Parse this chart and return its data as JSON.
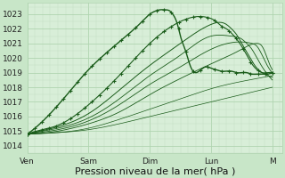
{
  "background_color": "#c8e6c8",
  "plot_bg_color": "#d8eed8",
  "grid_major_color": "#b0d4b0",
  "grid_minor_color": "#c0dcc0",
  "line_color": "#1a5c1a",
  "xlabel": "Pression niveau de la mer( hPa )",
  "xlabel_fontsize": 8,
  "tick_fontsize": 6.5,
  "ylim": [
    1013.5,
    1023.8
  ],
  "yticks": [
    1014,
    1015,
    1016,
    1017,
    1018,
    1019,
    1020,
    1021,
    1022,
    1023
  ],
  "x_day_labels": [
    "Ven",
    "Sam",
    "Dim",
    "Lun",
    "M"
  ],
  "x_day_positions": [
    0,
    48,
    96,
    144,
    192
  ],
  "total_hours": 200,
  "lines": [
    {
      "x": [
        0,
        6,
        18,
        36,
        48,
        60,
        72,
        84,
        90,
        96,
        100,
        104,
        108,
        112,
        114,
        116,
        118,
        120,
        124,
        128,
        132,
        136,
        140,
        144,
        148,
        152,
        156,
        160,
        164,
        168,
        172,
        176,
        180,
        184,
        188,
        192
      ],
      "y": [
        1014.8,
        1015.2,
        1016.2,
        1018.0,
        1019.2,
        1020.2,
        1021.1,
        1022.0,
        1022.5,
        1023.0,
        1023.2,
        1023.3,
        1023.3,
        1023.2,
        1023.0,
        1022.7,
        1022.2,
        1021.5,
        1020.5,
        1019.4,
        1019.0,
        1019.2,
        1019.4,
        1019.3,
        1019.2,
        1019.1,
        1019.1,
        1019.1,
        1019.0,
        1019.0,
        1019.0,
        1018.9,
        1018.9,
        1018.9,
        1018.9,
        1019.0
      ],
      "marker": true,
      "linewidth": 1.0
    },
    {
      "x": [
        0,
        12,
        24,
        48,
        72,
        96,
        120,
        130,
        140,
        144,
        148,
        152,
        156,
        160,
        164,
        168,
        172,
        176,
        180,
        184,
        188,
        192
      ],
      "y": [
        1014.8,
        1015.1,
        1015.4,
        1016.8,
        1018.8,
        1021.0,
        1022.5,
        1022.8,
        1022.8,
        1022.7,
        1022.5,
        1022.2,
        1022.0,
        1021.7,
        1021.3,
        1020.8,
        1020.2,
        1019.6,
        1019.2,
        1019.0,
        1019.0,
        1019.0
      ],
      "marker": true,
      "linewidth": 0.8
    },
    {
      "x": [
        0,
        24,
        48,
        72,
        96,
        120,
        144,
        156,
        160,
        164,
        168,
        172,
        176,
        180,
        184,
        188,
        192
      ],
      "y": [
        1014.8,
        1015.3,
        1016.2,
        1017.8,
        1019.5,
        1021.0,
        1022.3,
        1022.3,
        1022.0,
        1021.6,
        1021.0,
        1020.4,
        1019.8,
        1019.3,
        1019.0,
        1018.8,
        1018.7
      ],
      "marker": false,
      "linewidth": 0.7
    },
    {
      "x": [
        0,
        24,
        48,
        72,
        96,
        120,
        144,
        160,
        168,
        172,
        176,
        180,
        184,
        188,
        192
      ],
      "y": [
        1014.8,
        1015.2,
        1015.9,
        1017.2,
        1018.8,
        1020.2,
        1021.5,
        1021.5,
        1021.3,
        1021.0,
        1020.6,
        1020.0,
        1019.4,
        1018.9,
        1018.5
      ],
      "marker": false,
      "linewidth": 0.6
    },
    {
      "x": [
        0,
        24,
        48,
        72,
        96,
        120,
        144,
        168,
        176,
        180,
        184,
        188,
        192
      ],
      "y": [
        1014.8,
        1015.1,
        1015.7,
        1016.8,
        1018.2,
        1019.4,
        1020.6,
        1021.1,
        1021.0,
        1020.8,
        1020.2,
        1019.5,
        1019.0
      ],
      "marker": false,
      "linewidth": 0.6
    },
    {
      "x": [
        0,
        24,
        48,
        72,
        96,
        120,
        144,
        168,
        180,
        184,
        188,
        192
      ],
      "y": [
        1014.8,
        1015.0,
        1015.5,
        1016.3,
        1017.5,
        1018.6,
        1019.6,
        1020.6,
        1021.0,
        1020.8,
        1020.0,
        1019.2
      ],
      "marker": false,
      "linewidth": 0.6
    },
    {
      "x": [
        0,
        24,
        48,
        72,
        96,
        120,
        144,
        168,
        192
      ],
      "y": [
        1014.8,
        1014.9,
        1015.2,
        1015.8,
        1016.5,
        1017.2,
        1017.9,
        1018.4,
        1018.8
      ],
      "marker": false,
      "linewidth": 0.5
    },
    {
      "x": [
        0,
        24,
        48,
        72,
        96,
        120,
        144,
        168,
        192
      ],
      "y": [
        1014.8,
        1014.9,
        1015.1,
        1015.5,
        1016.0,
        1016.5,
        1017.0,
        1017.5,
        1018.0
      ],
      "marker": false,
      "linewidth": 0.5
    }
  ]
}
